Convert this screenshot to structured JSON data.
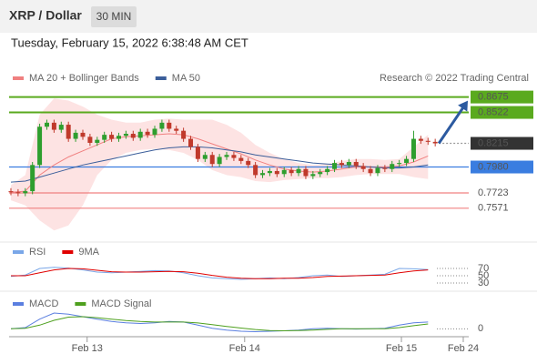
{
  "header": {
    "title": "XRP / Dollar",
    "timeframe": "30 MIN",
    "timestamp": "Tuesday, February 15, 2022 6:38:48 AM CET",
    "credit": "Research © 2022 Trading Central"
  },
  "chart_data": [
    {
      "type": "candlestick",
      "xlim": [
        -0.25,
        72.9
      ],
      "ylim": [
        0.728,
        0.878
      ],
      "up_color": "#2e9e2e",
      "down_color": "#c0392b",
      "x": [
        0,
        1,
        2,
        3,
        4,
        5,
        6,
        7,
        8,
        9,
        10,
        11,
        12,
        13,
        14,
        15,
        16,
        17,
        18,
        19,
        20,
        21,
        22,
        23,
        24,
        25,
        26,
        27,
        28,
        29,
        30,
        31,
        32,
        33,
        34,
        35,
        36,
        37,
        38,
        39,
        40,
        41,
        42,
        43,
        44,
        45,
        46,
        47,
        48,
        49,
        50,
        51,
        52,
        53,
        54,
        55,
        56,
        57,
        58,
        59
      ],
      "open": [
        0.774,
        0.773,
        0.772,
        0.774,
        0.8,
        0.838,
        0.842,
        0.835,
        0.84,
        0.826,
        0.832,
        0.828,
        0.822,
        0.825,
        0.83,
        0.826,
        0.829,
        0.831,
        0.827,
        0.833,
        0.83,
        0.836,
        0.842,
        0.836,
        0.834,
        0.826,
        0.818,
        0.806,
        0.81,
        0.801,
        0.808,
        0.81,
        0.807,
        0.804,
        0.8,
        0.79,
        0.792,
        0.794,
        0.791,
        0.795,
        0.792,
        0.796,
        0.789,
        0.791,
        0.793,
        0.796,
        0.802,
        0.8,
        0.803,
        0.799,
        0.796,
        0.792,
        0.797,
        0.796,
        0.801,
        0.802,
        0.806,
        0.826,
        0.824,
        0.823
      ],
      "high": [
        0.777,
        0.776,
        0.777,
        0.803,
        0.841,
        0.845,
        0.845,
        0.843,
        0.843,
        0.835,
        0.835,
        0.831,
        0.828,
        0.833,
        0.833,
        0.832,
        0.834,
        0.834,
        0.836,
        0.836,
        0.839,
        0.845,
        0.845,
        0.839,
        0.837,
        0.829,
        0.821,
        0.813,
        0.813,
        0.811,
        0.813,
        0.813,
        0.81,
        0.807,
        0.803,
        0.795,
        0.797,
        0.797,
        0.798,
        0.798,
        0.799,
        0.799,
        0.794,
        0.796,
        0.799,
        0.805,
        0.805,
        0.806,
        0.806,
        0.802,
        0.799,
        0.8,
        0.8,
        0.804,
        0.805,
        0.809,
        0.834,
        0.829,
        0.827,
        0.826
      ],
      "low": [
        0.77,
        0.769,
        0.769,
        0.771,
        0.797,
        0.835,
        0.832,
        0.832,
        0.823,
        0.823,
        0.825,
        0.819,
        0.819,
        0.822,
        0.823,
        0.823,
        0.826,
        0.824,
        0.824,
        0.827,
        0.827,
        0.833,
        0.833,
        0.831,
        0.823,
        0.815,
        0.803,
        0.803,
        0.798,
        0.798,
        0.805,
        0.804,
        0.801,
        0.797,
        0.787,
        0.787,
        0.789,
        0.788,
        0.788,
        0.789,
        0.789,
        0.786,
        0.786,
        0.788,
        0.79,
        0.793,
        0.797,
        0.797,
        0.796,
        0.793,
        0.789,
        0.789,
        0.793,
        0.793,
        0.798,
        0.799,
        0.803,
        0.821,
        0.82,
        0.8185
      ],
      "close": [
        0.773,
        0.772,
        0.774,
        0.8,
        0.838,
        0.842,
        0.835,
        0.84,
        0.826,
        0.832,
        0.828,
        0.822,
        0.825,
        0.83,
        0.826,
        0.829,
        0.831,
        0.827,
        0.833,
        0.83,
        0.836,
        0.842,
        0.836,
        0.834,
        0.826,
        0.818,
        0.806,
        0.81,
        0.801,
        0.808,
        0.81,
        0.807,
        0.804,
        0.8,
        0.79,
        0.792,
        0.794,
        0.791,
        0.795,
        0.792,
        0.796,
        0.789,
        0.791,
        0.793,
        0.796,
        0.802,
        0.8,
        0.803,
        0.799,
        0.796,
        0.792,
        0.797,
        0.796,
        0.801,
        0.802,
        0.806,
        0.826,
        0.824,
        0.823,
        0.8215
      ],
      "series": [
        {
          "name": "MA 20 + Bollinger Bands",
          "color": "#f08080",
          "band_color": "#fde3e3",
          "x": [
            0,
            2,
            4,
            6,
            8,
            10,
            12,
            14,
            16,
            18,
            20,
            22,
            24,
            26,
            28,
            30,
            32,
            34,
            36,
            38,
            40,
            42,
            44,
            46,
            48,
            50,
            52,
            54,
            56,
            58
          ],
          "values": [
            0.773,
            0.774,
            0.79,
            0.8,
            0.808,
            0.814,
            0.82,
            0.826,
            0.828,
            0.829,
            0.83,
            0.831,
            0.83,
            0.826,
            0.821,
            0.816,
            0.811,
            0.805,
            0.8,
            0.796,
            0.794,
            0.793,
            0.794,
            0.796,
            0.798,
            0.798,
            0.798,
            0.799,
            0.803,
            0.809
          ],
          "upper": [
            0.78,
            0.79,
            0.85,
            0.866,
            0.864,
            0.858,
            0.85,
            0.845,
            0.842,
            0.842,
            0.845,
            0.846,
            0.845,
            0.845,
            0.845,
            0.84,
            0.832,
            0.82,
            0.812,
            0.806,
            0.802,
            0.8,
            0.801,
            0.804,
            0.806,
            0.806,
            0.805,
            0.806,
            0.818,
            0.83
          ],
          "lower": [
            0.765,
            0.76,
            0.745,
            0.735,
            0.74,
            0.76,
            0.79,
            0.805,
            0.812,
            0.815,
            0.816,
            0.815,
            0.812,
            0.805,
            0.795,
            0.79,
            0.788,
            0.784,
            0.783,
            0.785,
            0.786,
            0.787,
            0.787,
            0.788,
            0.79,
            0.791,
            0.791,
            0.791,
            0.788,
            0.786
          ]
        },
        {
          "name": "MA 50",
          "color": "#3b5e9a",
          "x": [
            0,
            2,
            4,
            6,
            8,
            10,
            12,
            14,
            16,
            18,
            20,
            22,
            24,
            26,
            28,
            30,
            32,
            34,
            36,
            38,
            40,
            42,
            44,
            46,
            48,
            50,
            52,
            54,
            56,
            58
          ],
          "values": [
            0.783,
            0.784,
            0.788,
            0.792,
            0.796,
            0.8,
            0.803,
            0.806,
            0.809,
            0.812,
            0.815,
            0.817,
            0.818,
            0.818,
            0.817,
            0.815,
            0.813,
            0.81,
            0.808,
            0.806,
            0.804,
            0.802,
            0.801,
            0.8,
            0.799,
            0.798,
            0.797,
            0.797,
            0.798,
            0.8
          ]
        }
      ],
      "levels": [
        {
          "value": 0.8675,
          "label": "0.8675",
          "color": "#5aaa1e",
          "style": "solid",
          "boxed": true
        },
        {
          "value": 0.8522,
          "label": "0.8522",
          "color": "#5aaa1e",
          "style": "solid",
          "boxed": true
        },
        {
          "value": 0.8215,
          "label": "0.8215",
          "color": "#333333",
          "style": "dotted",
          "boxed": true
        },
        {
          "value": 0.798,
          "label": "0.7980",
          "color": "#3a7de0",
          "style": "solid",
          "boxed": true
        },
        {
          "value": 0.7723,
          "label": "0.7723",
          "color": "#f08080",
          "style": "solid",
          "boxed": false
        },
        {
          "value": 0.7571,
          "label": "0.7571",
          "color": "#f08080",
          "style": "solid",
          "boxed": false
        }
      ],
      "arrow_color": "#2c5aa0"
    },
    {
      "type": "line",
      "xlim": [
        -0.25,
        72.9
      ],
      "ylim": [
        0,
        100
      ],
      "yticks": [
        30,
        50,
        70
      ],
      "series": [
        {
          "name": "RSI",
          "color": "#7aa7e8",
          "x": [
            0,
            2,
            4,
            6,
            8,
            10,
            12,
            14,
            16,
            18,
            20,
            22,
            24,
            26,
            28,
            30,
            32,
            34,
            36,
            38,
            40,
            42,
            44,
            46,
            48,
            50,
            52,
            54,
            56,
            58
          ],
          "values": [
            48,
            52,
            70,
            73,
            71,
            66,
            60,
            58,
            60,
            62,
            64,
            63,
            58,
            50,
            44,
            42,
            40,
            42,
            44,
            42,
            45,
            50,
            52,
            48,
            50,
            52,
            54,
            70,
            69,
            67
          ]
        },
        {
          "name": "9MA",
          "color": "#e00000",
          "x": [
            0,
            2,
            4,
            6,
            8,
            10,
            12,
            14,
            16,
            18,
            20,
            22,
            24,
            26,
            28,
            30,
            32,
            34,
            36,
            38,
            40,
            42,
            44,
            46,
            48,
            50,
            52,
            54,
            56,
            58
          ],
          "values": [
            50,
            50,
            58,
            66,
            70,
            69,
            65,
            61,
            60,
            60,
            61,
            62,
            61,
            57,
            51,
            46,
            43,
            42,
            42,
            43,
            43,
            45,
            48,
            49,
            50,
            51,
            52,
            58,
            63,
            66
          ]
        }
      ]
    },
    {
      "type": "line",
      "xlim": [
        -0.25,
        72.9
      ],
      "ylim": [
        -0.0025,
        0.0125
      ],
      "yticks": [
        0
      ],
      "xticks": [
        {
          "value": 10.6,
          "label": "Feb 13"
        },
        {
          "value": 32.5,
          "label": "Feb 14"
        },
        {
          "value": 54.3,
          "label": "Feb 15"
        },
        {
          "value": 62.9,
          "label": "Feb 24"
        }
      ],
      "series": [
        {
          "name": "MACD",
          "color": "#5b7fe0",
          "x": [
            0,
            2,
            4,
            6,
            8,
            10,
            12,
            14,
            16,
            18,
            20,
            22,
            24,
            26,
            28,
            30,
            32,
            34,
            36,
            38,
            40,
            42,
            44,
            46,
            48,
            50,
            52,
            54,
            56,
            58
          ],
          "values": [
            0,
            0.0005,
            0.004,
            0.0065,
            0.006,
            0.005,
            0.004,
            0.003,
            0.0025,
            0.0022,
            0.0025,
            0.003,
            0.0028,
            0.0015,
            0.0002,
            -0.0005,
            -0.001,
            -0.0012,
            -0.001,
            -0.0008,
            -0.0005,
            0,
            0.0002,
            0,
            -0.0001,
            0,
            0.0002,
            0.0015,
            0.0025,
            0.0028
          ]
        },
        {
          "name": "MACD Signal",
          "color": "#4ea01e",
          "x": [
            0,
            2,
            4,
            6,
            8,
            10,
            12,
            14,
            16,
            18,
            20,
            22,
            24,
            26,
            28,
            30,
            32,
            34,
            36,
            38,
            40,
            42,
            44,
            46,
            48,
            50,
            52,
            54,
            56,
            58
          ],
          "values": [
            0,
            0.0002,
            0.0015,
            0.0035,
            0.0048,
            0.005,
            0.0046,
            0.004,
            0.0034,
            0.003,
            0.0028,
            0.0028,
            0.0028,
            0.0024,
            0.0017,
            0.001,
            0.0003,
            -0.0003,
            -0.0007,
            -0.0008,
            -0.0007,
            -0.0005,
            -0.0002,
            0,
            0,
            0,
            0,
            0.0005,
            0.0013,
            0.002
          ]
        }
      ]
    }
  ]
}
